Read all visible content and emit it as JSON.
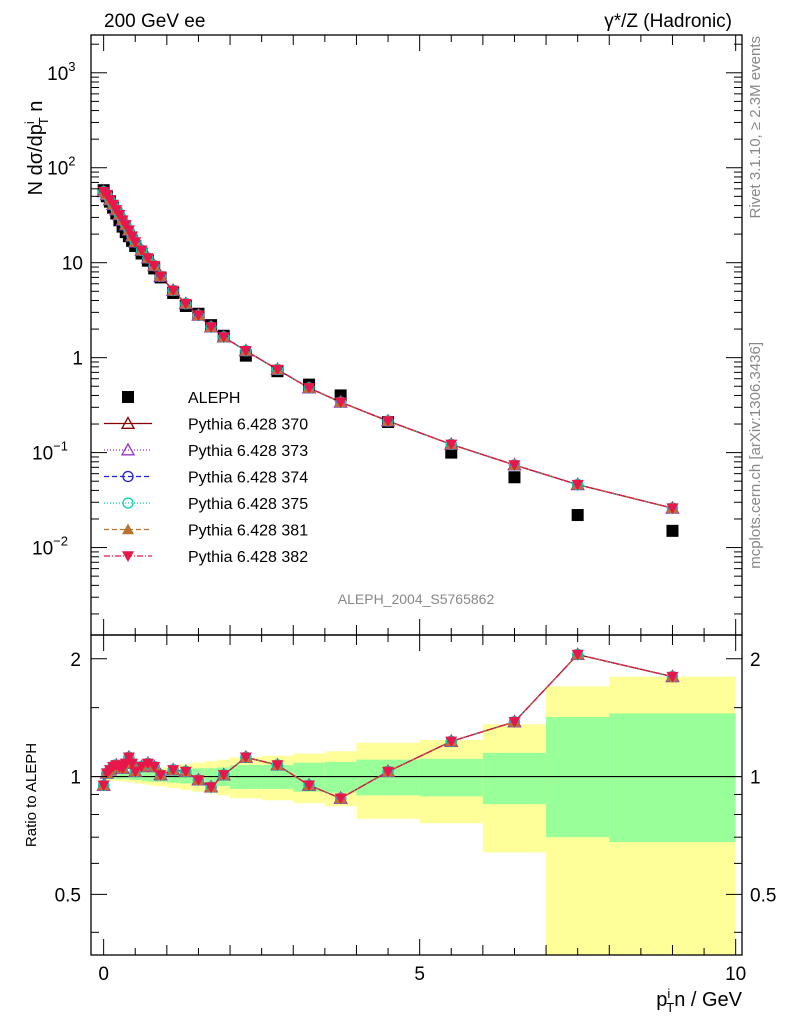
{
  "header": {
    "left": "200 GeV ee",
    "right": "γ*/Z (Hadronic)"
  },
  "side_text": {
    "rivet": "Rivet 3.1.10, ≥ 2.3M events",
    "mcplots": "mcplots.cern.ch [arXiv:1306.3436]"
  },
  "watermark": "ALEPH_2004_S5765862",
  "chart_data": [
    {
      "type": "scatter",
      "panel": "main",
      "ylabel": "N dσ/dp_T^i n",
      "yscale": "log",
      "ylim": [
        0.0012,
        2500
      ],
      "xlim": [
        -0.2,
        10.1
      ],
      "yticks": [
        "10^-2",
        "10^-1",
        "1",
        "10",
        "10^2",
        "10^3"
      ],
      "data": {
        "name": "ALEPH",
        "x": [
          0.0,
          0.05,
          0.1,
          0.15,
          0.2,
          0.25,
          0.3,
          0.35,
          0.4,
          0.45,
          0.5,
          0.6,
          0.7,
          0.8,
          0.9,
          1.1,
          1.3,
          1.5,
          1.7,
          1.9,
          2.25,
          2.75,
          3.25,
          3.75,
          4.5,
          5.5,
          6.5,
          7.5,
          9.0
        ],
        "y": [
          58,
          50,
          44,
          38,
          33,
          28,
          24,
          21,
          19,
          17,
          15,
          12.5,
          10.5,
          8.7,
          7.0,
          4.8,
          3.5,
          2.9,
          2.2,
          1.7,
          1.05,
          0.72,
          0.52,
          0.4,
          0.21,
          0.1,
          0.055,
          0.022,
          0.015
        ]
      },
      "mc": {
        "y": [
          56,
          52,
          46,
          41,
          36,
          32,
          28,
          25,
          22,
          19,
          16.5,
          13.5,
          11.2,
          9.3,
          7.2,
          5.1,
          3.7,
          2.8,
          2.1,
          1.65,
          1.18,
          0.75,
          0.48,
          0.34,
          0.215,
          0.122,
          0.074,
          0.046,
          0.026
        ]
      },
      "legend": {
        "placement": "middle-left",
        "entries": [
          {
            "label": "ALEPH",
            "marker": "square-filled",
            "color": "#000000",
            "dash": ""
          },
          {
            "label": "Pythia 6.428 370",
            "marker": "triangle-up-open",
            "color": "#8b0000",
            "dash": ""
          },
          {
            "label": "Pythia 6.428 373",
            "marker": "triangle-up-open",
            "color": "#9932cc",
            "dash": "1,2"
          },
          {
            "label": "Pythia 6.428 374",
            "marker": "circle-open",
            "color": "#2020dd",
            "dash": "5,3"
          },
          {
            "label": "Pythia 6.428 375",
            "marker": "circle-open",
            "color": "#00d7b0",
            "dash": "1,2"
          },
          {
            "label": "Pythia 6.428 381",
            "marker": "triangle-up-filled",
            "color": "#b87333",
            "dash": "5,3"
          },
          {
            "label": "Pythia 6.428 382",
            "marker": "triangle-down-filled",
            "color": "#e8174b",
            "dash": "6,2,1,2"
          }
        ]
      }
    },
    {
      "type": "line",
      "panel": "ratio",
      "ylabel": "Ratio to ALEPH",
      "xlabel": "p_T^i n / GeV",
      "ylim": [
        0.35,
        2.3
      ],
      "yscale": "log",
      "xlim": [
        -0.2,
        10.1
      ],
      "xticks": [
        "0",
        "5",
        "10"
      ],
      "yticks": [
        "0.5",
        "1",
        "2"
      ],
      "bands": {
        "edges": [
          0.0,
          0.1,
          0.2,
          0.3,
          0.4,
          0.5,
          0.6,
          0.7,
          0.8,
          1.0,
          1.2,
          1.4,
          1.6,
          1.8,
          2.0,
          2.5,
          3.0,
          3.5,
          4.0,
          5.0,
          6.0,
          7.0,
          8.0,
          10.0
        ],
        "stat_syst_lo": [
          0.985,
          0.985,
          0.985,
          0.985,
          0.98,
          0.98,
          0.975,
          0.97,
          0.97,
          0.965,
          0.96,
          0.95,
          0.95,
          0.945,
          0.93,
          0.93,
          0.915,
          0.91,
          0.895,
          0.89,
          0.85,
          0.7,
          0.68
        ],
        "stat_syst_hi": [
          1.015,
          1.015,
          1.015,
          1.015,
          1.02,
          1.02,
          1.025,
          1.03,
          1.03,
          1.035,
          1.04,
          1.05,
          1.05,
          1.055,
          1.07,
          1.07,
          1.085,
          1.09,
          1.105,
          1.11,
          1.15,
          1.42,
          1.45
        ],
        "total_lo": [
          0.975,
          0.975,
          0.975,
          0.97,
          0.965,
          0.96,
          0.955,
          0.95,
          0.945,
          0.935,
          0.925,
          0.915,
          0.905,
          0.895,
          0.88,
          0.87,
          0.855,
          0.84,
          0.78,
          0.76,
          0.64,
          0.35,
          0.35
        ],
        "total_hi": [
          1.025,
          1.025,
          1.025,
          1.03,
          1.035,
          1.04,
          1.045,
          1.05,
          1.055,
          1.065,
          1.075,
          1.085,
          1.095,
          1.105,
          1.12,
          1.13,
          1.145,
          1.16,
          1.22,
          1.24,
          1.36,
          1.7,
          1.8
        ]
      },
      "series_x": [
        0.0,
        0.05,
        0.1,
        0.15,
        0.2,
        0.25,
        0.3,
        0.35,
        0.4,
        0.45,
        0.5,
        0.6,
        0.7,
        0.8,
        0.9,
        1.1,
        1.3,
        1.5,
        1.7,
        1.9,
        2.25,
        2.75,
        3.25,
        3.75,
        4.5,
        5.5,
        6.5,
        7.5,
        9.0
      ],
      "series_y": [
        0.95,
        1.02,
        1.04,
        1.06,
        1.07,
        1.06,
        1.05,
        1.08,
        1.12,
        1.08,
        1.03,
        1.06,
        1.08,
        1.06,
        1.01,
        1.04,
        1.03,
        0.98,
        0.94,
        1.01,
        1.12,
        1.07,
        0.95,
        0.88,
        1.03,
        1.23,
        1.38,
        2.05,
        1.8
      ]
    }
  ]
}
